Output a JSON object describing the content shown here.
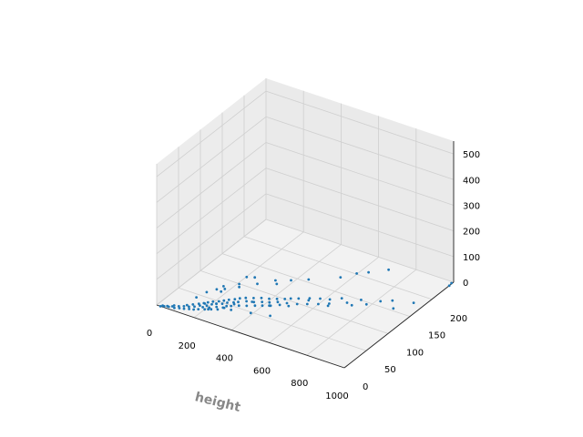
{
  "chart_data": {
    "type": "scatter",
    "title": "",
    "xlabel": "height",
    "ylabel": "",
    "zlabel": "",
    "xlim": [
      0,
      1000
    ],
    "ylim": [
      0,
      250
    ],
    "zlim": [
      0,
      550
    ],
    "x_ticks": [
      "0",
      "200",
      "400",
      "600",
      "800",
      "1000"
    ],
    "y_ticks": [
      "0",
      "50",
      "100",
      "150",
      "200"
    ],
    "z_ticks": [
      "0",
      "100",
      "200",
      "300",
      "400",
      "500"
    ],
    "grid": true,
    "marker_color": "#1f77b4",
    "points": [
      {
        "x": 20,
        "y": 0,
        "z": 0
      },
      {
        "x": 25,
        "y": 3,
        "z": 0
      },
      {
        "x": 35,
        "y": 2,
        "z": 1
      },
      {
        "x": 45,
        "y": 5,
        "z": 0
      },
      {
        "x": 55,
        "y": 4,
        "z": 1
      },
      {
        "x": 65,
        "y": 8,
        "z": 0
      },
      {
        "x": 70,
        "y": 10,
        "z": 2
      },
      {
        "x": 80,
        "y": 6,
        "z": 0
      },
      {
        "x": 90,
        "y": 12,
        "z": 1
      },
      {
        "x": 100,
        "y": 9,
        "z": 0
      },
      {
        "x": 110,
        "y": 15,
        "z": 2
      },
      {
        "x": 115,
        "y": 20,
        "z": 1
      },
      {
        "x": 120,
        "y": 11,
        "z": 0
      },
      {
        "x": 130,
        "y": 18,
        "z": 1
      },
      {
        "x": 135,
        "y": 25,
        "z": 2
      },
      {
        "x": 140,
        "y": 14,
        "z": 0
      },
      {
        "x": 150,
        "y": 22,
        "z": 1
      },
      {
        "x": 155,
        "y": 30,
        "z": 3
      },
      {
        "x": 160,
        "y": 16,
        "z": 0
      },
      {
        "x": 165,
        "y": 28,
        "z": 1
      },
      {
        "x": 170,
        "y": 35,
        "z": 2
      },
      {
        "x": 175,
        "y": 20,
        "z": 0
      },
      {
        "x": 180,
        "y": 40,
        "z": 1
      },
      {
        "x": 185,
        "y": 26,
        "z": 2
      },
      {
        "x": 190,
        "y": 33,
        "z": 0
      },
      {
        "x": 195,
        "y": 45,
        "z": 1
      },
      {
        "x": 200,
        "y": 24,
        "z": 0
      },
      {
        "x": 205,
        "y": 38,
        "z": 2
      },
      {
        "x": 210,
        "y": 30,
        "z": 1
      },
      {
        "x": 215,
        "y": 50,
        "z": 0
      },
      {
        "x": 220,
        "y": 42,
        "z": 3
      },
      {
        "x": 225,
        "y": 28,
        "z": 1
      },
      {
        "x": 230,
        "y": 55,
        "z": 0
      },
      {
        "x": 235,
        "y": 36,
        "z": 2
      },
      {
        "x": 240,
        "y": 47,
        "z": 1
      },
      {
        "x": 245,
        "y": 60,
        "z": 0
      },
      {
        "x": 250,
        "y": 32,
        "z": 1
      },
      {
        "x": 255,
        "y": 52,
        "z": 2
      },
      {
        "x": 260,
        "y": 40,
        "z": 0
      },
      {
        "x": 265,
        "y": 65,
        "z": 1
      },
      {
        "x": 270,
        "y": 44,
        "z": 3
      },
      {
        "x": 275,
        "y": 58,
        "z": 0
      },
      {
        "x": 280,
        "y": 70,
        "z": 1
      },
      {
        "x": 285,
        "y": 48,
        "z": 2
      },
      {
        "x": 290,
        "y": 62,
        "z": 0
      },
      {
        "x": 300,
        "y": 75,
        "z": 1
      },
      {
        "x": 310,
        "y": 55,
        "z": 0
      },
      {
        "x": 320,
        "y": 68,
        "z": 2
      },
      {
        "x": 330,
        "y": 80,
        "z": 1
      },
      {
        "x": 340,
        "y": 60,
        "z": 0
      },
      {
        "x": 350,
        "y": 72,
        "z": 1
      },
      {
        "x": 360,
        "y": 85,
        "z": 2
      },
      {
        "x": 370,
        "y": 66,
        "z": 0
      },
      {
        "x": 380,
        "y": 78,
        "z": 1
      },
      {
        "x": 390,
        "y": 90,
        "z": 0
      },
      {
        "x": 400,
        "y": 70,
        "z": 2
      },
      {
        "x": 410,
        "y": 82,
        "z": 1
      },
      {
        "x": 420,
        "y": 95,
        "z": 0
      },
      {
        "x": 430,
        "y": 76,
        "z": 1
      },
      {
        "x": 440,
        "y": 88,
        "z": 2
      },
      {
        "x": 450,
        "y": 100,
        "z": 0
      },
      {
        "x": 460,
        "y": 84,
        "z": 1
      },
      {
        "x": 470,
        "y": 105,
        "z": 0
      },
      {
        "x": 480,
        "y": 92,
        "z": 2
      },
      {
        "x": 500,
        "y": 110,
        "z": 1
      },
      {
        "x": 520,
        "y": 98,
        "z": 0
      },
      {
        "x": 540,
        "y": 118,
        "z": 1
      },
      {
        "x": 560,
        "y": 104,
        "z": 2
      },
      {
        "x": 580,
        "y": 125,
        "z": 0
      },
      {
        "x": 600,
        "y": 112,
        "z": 1
      },
      {
        "x": 620,
        "y": 130,
        "z": 0
      },
      {
        "x": 640,
        "y": 120,
        "z": 2
      },
      {
        "x": 660,
        "y": 140,
        "z": 1
      },
      {
        "x": 700,
        "y": 135,
        "z": 0
      },
      {
        "x": 740,
        "y": 150,
        "z": 1
      },
      {
        "x": 780,
        "y": 145,
        "z": 0
      },
      {
        "x": 820,
        "y": 160,
        "z": 2
      },
      {
        "x": 860,
        "y": 170,
        "z": 1
      },
      {
        "x": 900,
        "y": 155,
        "z": 0
      },
      {
        "x": 950,
        "y": 180,
        "z": 1
      },
      {
        "x": 130,
        "y": 35,
        "z": 15
      },
      {
        "x": 150,
        "y": 50,
        "z": 20
      },
      {
        "x": 180,
        "y": 60,
        "z": 25
      },
      {
        "x": 200,
        "y": 70,
        "z": 18
      },
      {
        "x": 210,
        "y": 20,
        "z": 30
      },
      {
        "x": 240,
        "y": 15,
        "z": 22
      },
      {
        "x": 260,
        "y": 25,
        "z": 35
      },
      {
        "x": 290,
        "y": 30,
        "z": 20
      },
      {
        "x": 320,
        "y": 40,
        "z": 28
      },
      {
        "x": 350,
        "y": 20,
        "z": 40
      },
      {
        "x": 380,
        "y": 55,
        "z": 32
      },
      {
        "x": 420,
        "y": 35,
        "z": 25
      },
      {
        "x": 460,
        "y": 60,
        "z": 30
      },
      {
        "x": 500,
        "y": 45,
        "z": 20
      },
      {
        "x": 540,
        "y": 70,
        "z": 35
      },
      {
        "x": 600,
        "y": 90,
        "z": 45
      },
      {
        "x": 680,
        "y": 100,
        "z": 30
      },
      {
        "x": 760,
        "y": 120,
        "z": 25
      },
      {
        "x": 360,
        "y": 120,
        "z": 10
      },
      {
        "x": 460,
        "y": 150,
        "z": 12
      },
      {
        "x": 560,
        "y": 180,
        "z": 5
      },
      {
        "x": 600,
        "y": 200,
        "z": 3
      },
      {
        "x": 640,
        "y": 210,
        "z": 4
      },
      {
        "x": 700,
        "y": 230,
        "z": 2
      },
      {
        "x": 1000,
        "y": 240,
        "z": 0
      },
      {
        "x": 1000,
        "y": 245,
        "z": 3
      },
      {
        "x": 250,
        "y": 40,
        "z": 60
      },
      {
        "x": 300,
        "y": 60,
        "z": 75
      },
      {
        "x": 270,
        "y": 90,
        "z": 55
      },
      {
        "x": 290,
        "y": 100,
        "z": 45
      },
      {
        "x": 170,
        "y": 80,
        "z": 8
      },
      {
        "x": 230,
        "y": 90,
        "z": 6
      },
      {
        "x": 280,
        "y": 110,
        "z": 4
      },
      {
        "x": 330,
        "y": 130,
        "z": 3
      },
      {
        "x": 390,
        "y": 140,
        "z": 5
      }
    ]
  }
}
